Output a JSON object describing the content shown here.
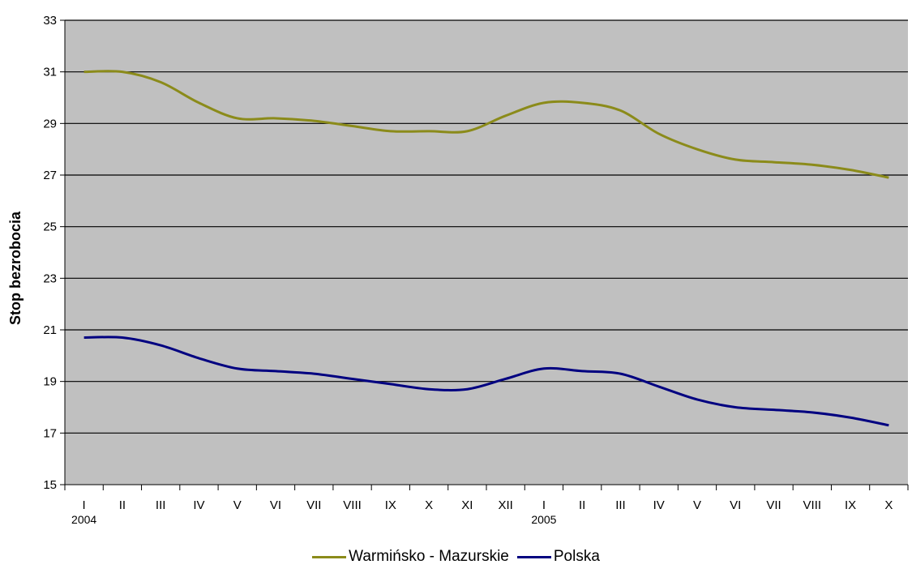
{
  "chart_data": {
    "type": "line",
    "ylabel": "Stop bezrobocia",
    "xlabel": "",
    "ylim": [
      15,
      33
    ],
    "yticks": [
      15,
      17,
      19,
      21,
      23,
      25,
      27,
      29,
      31,
      33
    ],
    "grid": true,
    "legend_position": "bottom",
    "background_color": "#c0c0c0",
    "categories": [
      "I",
      "II",
      "III",
      "IV",
      "V",
      "VI",
      "VII",
      "VIII",
      "IX",
      "X",
      "XI",
      "XII",
      "I",
      "II",
      "III",
      "IV",
      "V",
      "VI",
      "VII",
      "VIII",
      "IX",
      "X"
    ],
    "year_labels": [
      {
        "index": 0,
        "label": "2004"
      },
      {
        "index": 12,
        "label": "2005"
      }
    ],
    "series": [
      {
        "name": "Warmińsko - Mazurskie",
        "color": "#8b8b1a",
        "values": [
          31.0,
          31.0,
          30.6,
          29.8,
          29.2,
          29.2,
          29.1,
          28.9,
          28.7,
          28.7,
          28.7,
          29.3,
          29.8,
          29.8,
          29.5,
          28.6,
          28.0,
          27.6,
          27.5,
          27.4,
          27.2,
          26.9
        ]
      },
      {
        "name": "Polska",
        "color": "#000080",
        "values": [
          20.7,
          20.7,
          20.4,
          19.9,
          19.5,
          19.4,
          19.3,
          19.1,
          18.9,
          18.7,
          18.7,
          19.1,
          19.5,
          19.4,
          19.3,
          18.8,
          18.3,
          18.0,
          17.9,
          17.8,
          17.6,
          17.3
        ]
      }
    ]
  }
}
